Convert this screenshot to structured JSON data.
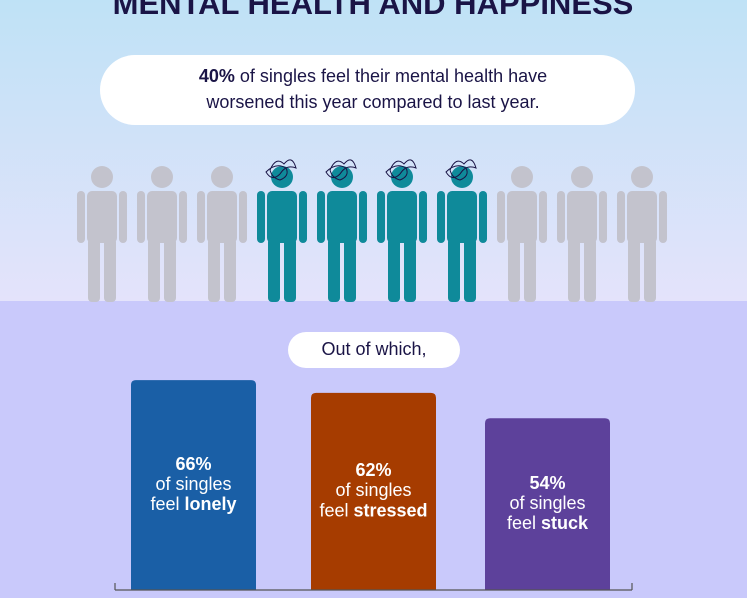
{
  "chart_data": [
    {
      "type": "pictogram",
      "title": "MENTAL HEALTH AND HAPPINESS",
      "value": 40,
      "value_label": "40%",
      "text_lines": [
        "of singles feel their mental health have",
        "worsened this year compared to last year."
      ],
      "color": "#0f8a9a",
      "base_color": "#c3c3cd"
    },
    {
      "type": "bar",
      "subtitle": "Out of which,",
      "categories": [
        "lonely",
        "stressed",
        "stuck"
      ],
      "label_line1": "of singles",
      "label_line2": "feel",
      "values": [
        66,
        62,
        54
      ],
      "value_labels": [
        "66%",
        "62%",
        "54%"
      ],
      "colors": [
        "#1a5fa6",
        "#a63c00",
        "#5d419b"
      ],
      "ylim": [
        0,
        100
      ]
    }
  ]
}
